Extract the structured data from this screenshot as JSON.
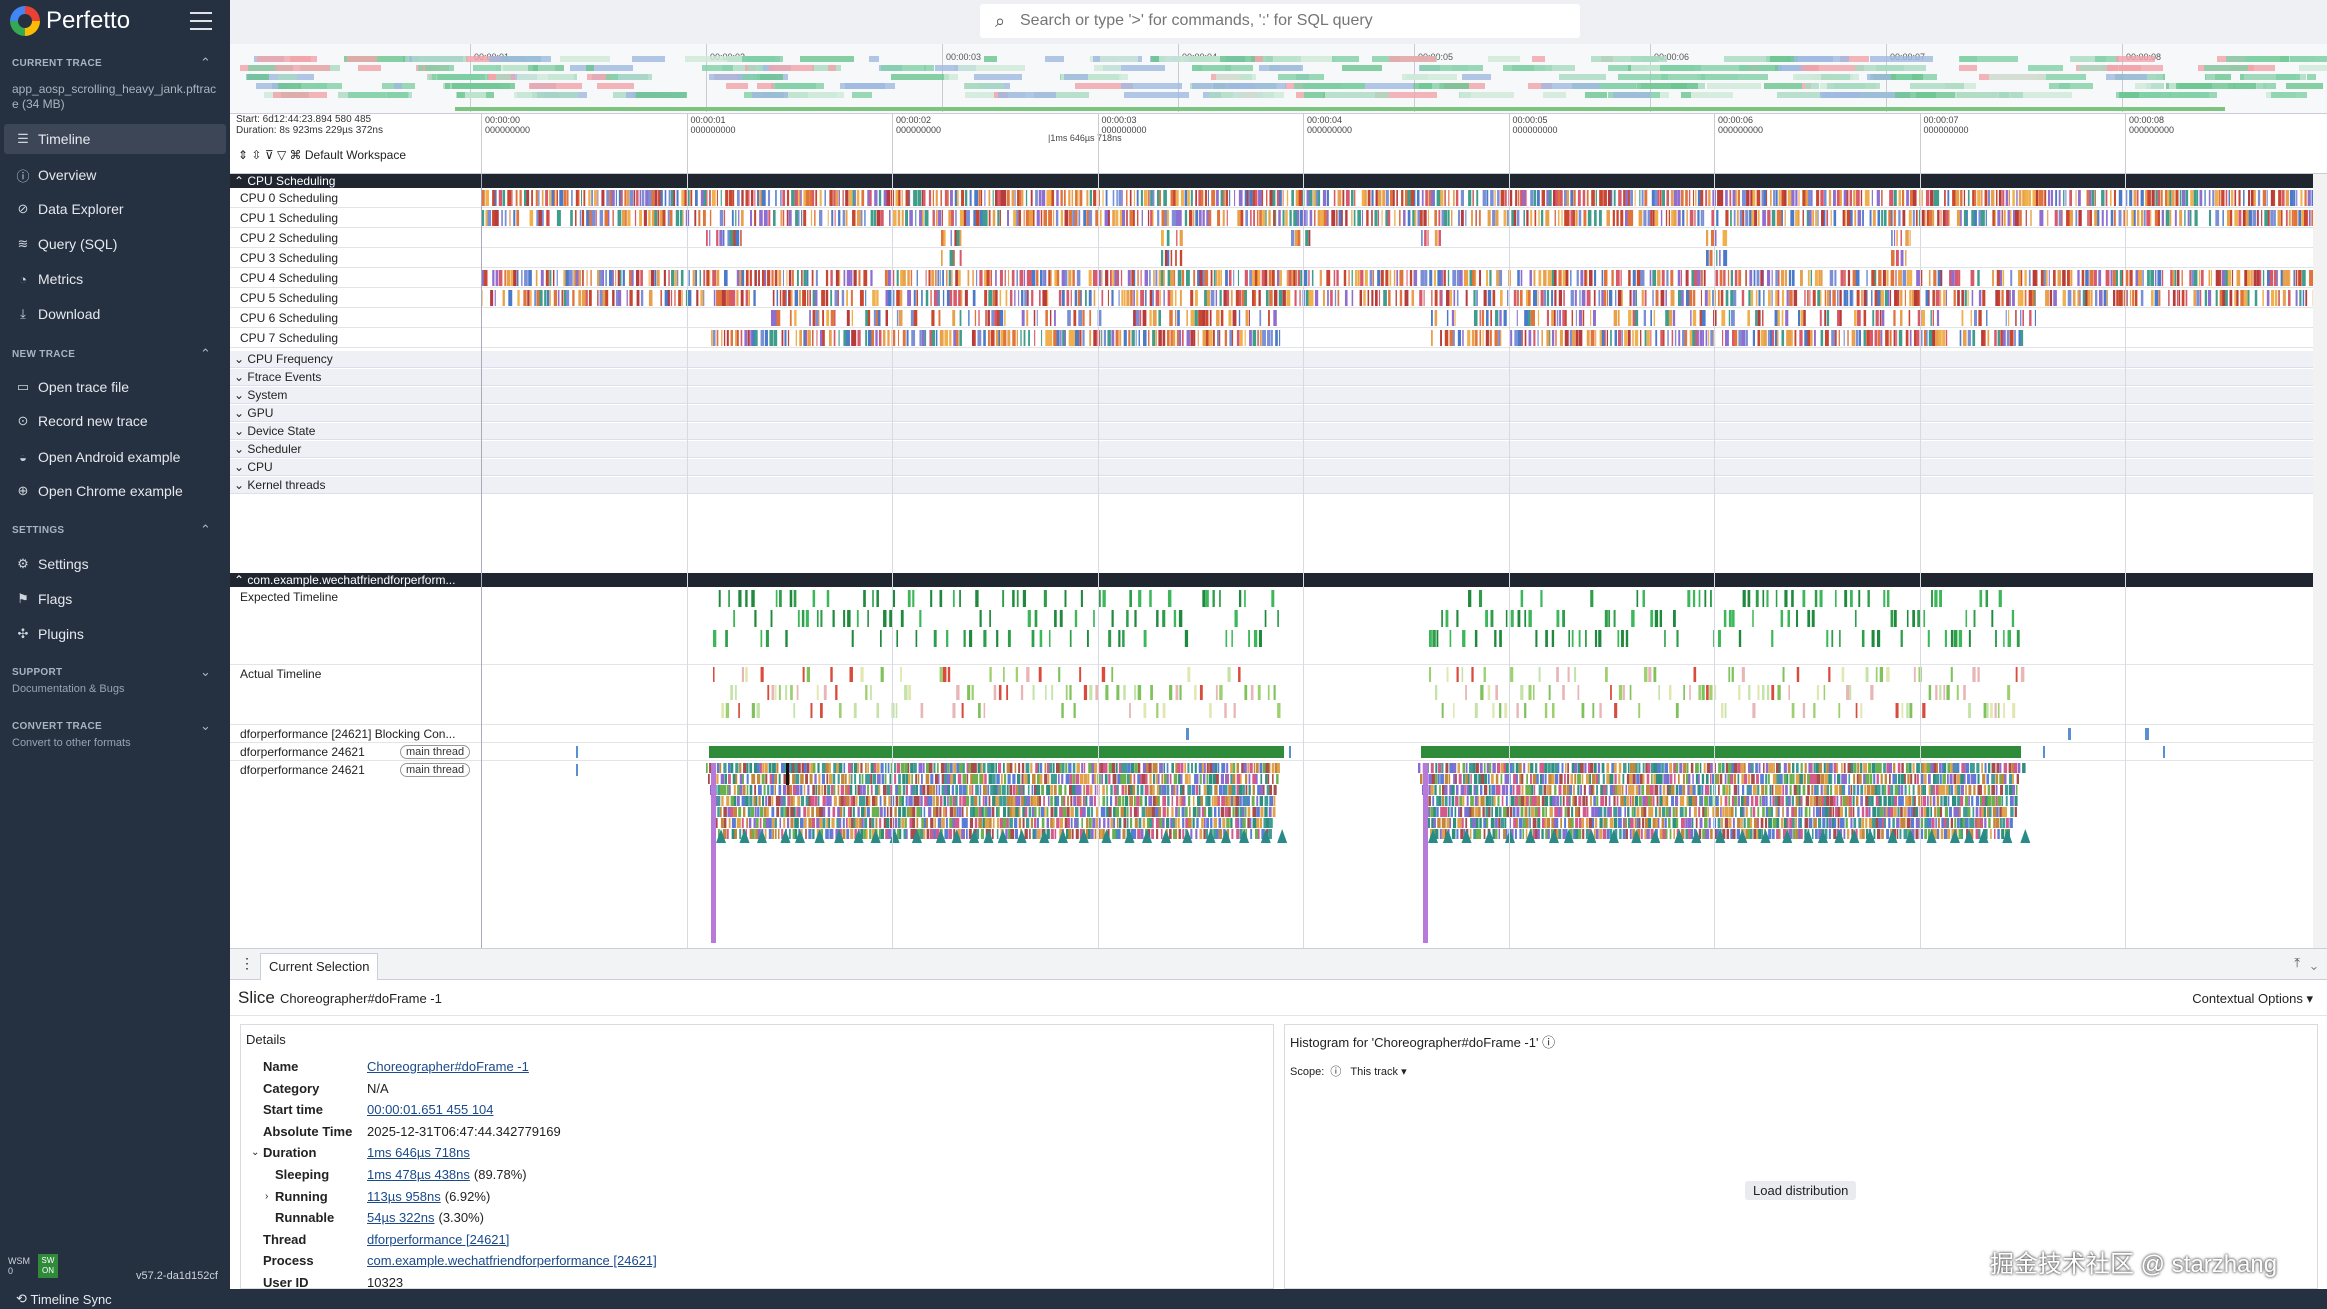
{
  "app": {
    "title": "Perfetto",
    "version": "v57.2-da1d152cf"
  },
  "sidebar": {
    "current_trace": {
      "section": "CURRENT TRACE",
      "name": "app_aosp_scrolling_heavy_jank.pftrace (34 MB)"
    },
    "nav": [
      {
        "label": "Timeline",
        "icon": "timeline-icon",
        "active": true
      },
      {
        "label": "Overview",
        "icon": "info-icon"
      },
      {
        "label": "Data Explorer",
        "icon": "explore-icon"
      },
      {
        "label": "Query (SQL)",
        "icon": "database-icon"
      },
      {
        "label": "Metrics",
        "icon": "speed-icon"
      },
      {
        "label": "Download",
        "icon": "download-icon"
      }
    ],
    "new_trace": {
      "section": "NEW TRACE",
      "items": [
        "Open trace file",
        "Record new trace",
        "Open Android example",
        "Open Chrome example"
      ]
    },
    "settings": {
      "section": "SETTINGS",
      "items": [
        "Settings",
        "Flags",
        "Plugins"
      ]
    },
    "support": {
      "section": "SUPPORT",
      "sub": "Documentation & Bugs"
    },
    "convert": {
      "section": "CONVERT TRACE",
      "sub": "Convert to other formats"
    },
    "footer": {
      "wsm": "WSM\n0",
      "sw": "SW\nON"
    }
  },
  "search": {
    "placeholder": "Search or type '>' for commands, ':' for SQL query"
  },
  "overview": {
    "ticks": [
      "00:00:01",
      "00:00:02",
      "00:00:03",
      "00:00:04",
      "00:00:05",
      "00:00:06",
      "00:00:07",
      "00:00:08"
    ]
  },
  "axis": {
    "start": "Start: 6d12:44:23.894 580 485",
    "duration": "Duration: 8s 923ms 229µs 372ns",
    "workspace": "Default Workspace",
    "selection_duration": "1ms 646µs 718ns",
    "ticks": [
      {
        "t": "00:00:00",
        "n": "000000000"
      },
      {
        "t": "00:00:01",
        "n": "000000000"
      },
      {
        "t": "00:00:02",
        "n": "000000000"
      },
      {
        "t": "00:00:03",
        "n": "000000000"
      },
      {
        "t": "00:00:04",
        "n": "000000000"
      },
      {
        "t": "00:00:05",
        "n": "000000000"
      },
      {
        "t": "00:00:06",
        "n": "000000000"
      },
      {
        "t": "00:00:07",
        "n": "000000000"
      },
      {
        "t": "00:00:08",
        "n": "000000000"
      }
    ]
  },
  "tracks": {
    "cpu_group": "CPU Scheduling",
    "cpus": [
      "CPU 0 Scheduling",
      "CPU 1 Scheduling",
      "CPU 2 Scheduling",
      "CPU 3 Scheduling",
      "CPU 4 Scheduling",
      "CPU 5 Scheduling",
      "CPU 6 Scheduling",
      "CPU 7 Scheduling"
    ],
    "collapsed": [
      "CPU Frequency",
      "Ftrace Events",
      "System",
      "GPU",
      "Device State",
      "Scheduler",
      "CPU",
      "Kernel threads"
    ],
    "process_group": "com.example.wechatfriendforperform...",
    "process_tracks": {
      "expected": "Expected Timeline",
      "actual": "Actual Timeline",
      "blocking": "dforperformance [24621] Blocking Con...",
      "thread1": "dforperformance 24621",
      "thread2": "dforperformance 24621",
      "badge": "main thread"
    }
  },
  "bottom": {
    "tab": "Current Selection",
    "kind": "Slice",
    "slice_name": "Choreographer#doFrame -1",
    "contextual": "Contextual Options",
    "details_title": "Details",
    "rows": [
      {
        "k": "Name",
        "v": "Choreographer#doFrame -1",
        "link": true
      },
      {
        "k": "Category",
        "v": "N/A"
      },
      {
        "k": "Start time",
        "v": "00:00:01.651 455 104",
        "link": true
      },
      {
        "k": "Absolute Time",
        "v": "2025-12-31T06:47:44.342779169"
      },
      {
        "k": "Duration",
        "v": "1ms 646µs 718ns",
        "link": true
      },
      {
        "k": "Sleeping",
        "v": "1ms 478µs 438ns",
        "extra": "(89.78%)",
        "link": true
      },
      {
        "k": "Running",
        "v": "113µs 958ns",
        "extra": "(6.92%)",
        "link": true
      },
      {
        "k": "Runnable",
        "v": "54µs 322ns",
        "extra": "(3.30%)",
        "link": true
      },
      {
        "k": "Thread",
        "v": "dforperformance [24621]",
        "link": true
      },
      {
        "k": "Process",
        "v": "com.example.wechatfriendforperformance [24621]",
        "link": true
      },
      {
        "k": "User ID",
        "v": "10323"
      }
    ],
    "histogram_title": "Histogram for 'Choreographer#doFrame -1'",
    "scope_label": "Scope:",
    "scope_value": "This track",
    "load_button": "Load distribution"
  },
  "statusbar": {
    "text": "Timeline Sync"
  },
  "watermark": "掘金技术社区 @ starzhang"
}
